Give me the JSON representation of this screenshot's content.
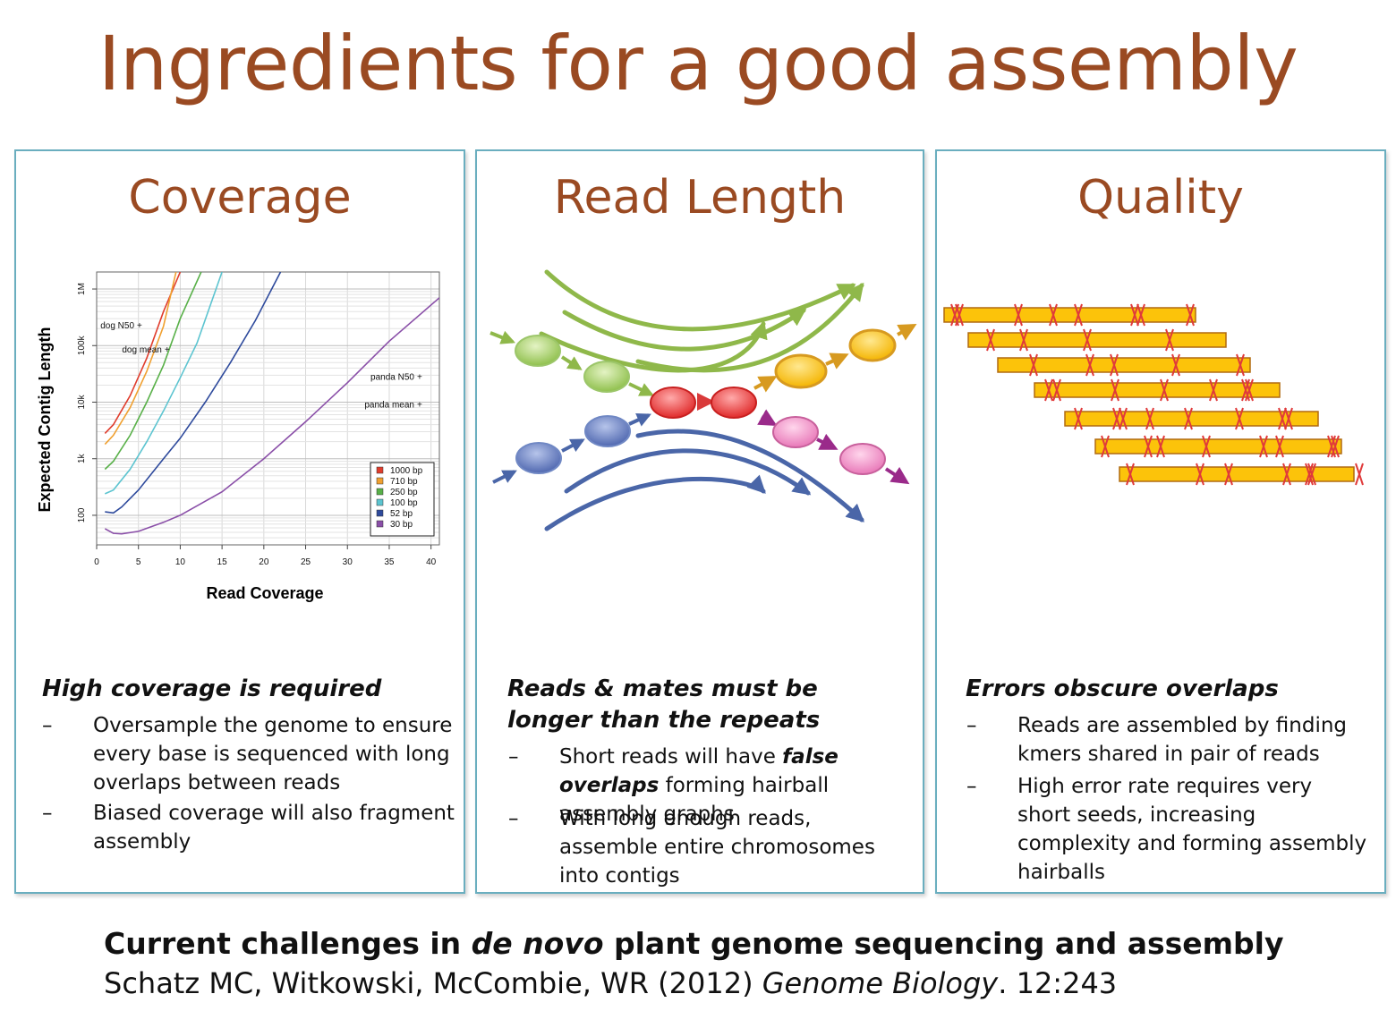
{
  "title": "Ingredients for a good assembly",
  "panels": {
    "coverage": {
      "title": "Coverage",
      "lead": "High coverage is required",
      "bullets": [
        "Oversample the genome to ensure every base is sequenced with long overlaps between reads",
        "Biased coverage will also fragment assembly"
      ]
    },
    "read_length": {
      "title": "Read Length",
      "lead": "Reads & mates must be longer than the repeats",
      "bullet1_pre": "Short reads will have ",
      "bullet1_em": "false overlaps",
      "bullet1_post": " forming hairball assembly graphs",
      "bullet2": "With long enough reads, assemble entire chromosomes into contigs"
    },
    "quality": {
      "title": "Quality",
      "lead": "Errors obscure overlaps",
      "bullets": [
        "Reads are assembled by finding kmers shared in pair of reads",
        "High error rate requires very short seeds, increasing complexity and forming assembly hairballs"
      ]
    }
  },
  "dash_glyph": "–",
  "citation": {
    "line1_pre": "Current challenges in ",
    "line1_em": "de novo",
    "line1_post": " plant genome sequencing and assembly",
    "line2_pre": "Schatz MC, Witkowski, McCombie, WR (2012) ",
    "line2_em": "Genome Biology",
    "line2_post": ". 12:243"
  },
  "chart_data": {
    "type": "line",
    "xlabel": "Read Coverage",
    "ylabel": "Expected Contig Length",
    "x_ticks": [
      0,
      5,
      10,
      15,
      20,
      25,
      30,
      35,
      40
    ],
    "y_ticks": [
      {
        "value": 100,
        "label": "100"
      },
      {
        "value": 1000,
        "label": "1k"
      },
      {
        "value": 10000,
        "label": "10k"
      },
      {
        "value": 100000,
        "label": "100k"
      },
      {
        "value": 1000000,
        "label": "1M"
      }
    ],
    "xlim": [
      0,
      41
    ],
    "ylim": [
      30,
      2000000
    ],
    "y_scale": "log",
    "grid": true,
    "legend_position": "bottom-right",
    "series": [
      {
        "name": "1000 bp",
        "color": "#e03c2c",
        "points": [
          [
            1,
            2800
          ],
          [
            2,
            4000
          ],
          [
            4,
            13000
          ],
          [
            6,
            60000
          ],
          [
            8,
            400000
          ],
          [
            10,
            2000000
          ]
        ]
      },
      {
        "name": "710 bp",
        "color": "#f0a030",
        "points": [
          [
            1,
            1800
          ],
          [
            2,
            2600
          ],
          [
            4,
            8000
          ],
          [
            6,
            35000
          ],
          [
            8,
            220000
          ],
          [
            9.5,
            2000000
          ]
        ]
      },
      {
        "name": "250 bp",
        "color": "#58b048",
        "points": [
          [
            1,
            650
          ],
          [
            2,
            900
          ],
          [
            4,
            2600
          ],
          [
            6,
            10000
          ],
          [
            8,
            45000
          ],
          [
            10,
            300000
          ],
          [
            12.5,
            2000000
          ]
        ]
      },
      {
        "name": "100 bp",
        "color": "#5cc4d0",
        "points": [
          [
            1,
            240
          ],
          [
            2,
            280
          ],
          [
            4,
            650
          ],
          [
            6,
            2000
          ],
          [
            8,
            7000
          ],
          [
            10,
            27000
          ],
          [
            12,
            110000
          ],
          [
            15,
            2000000
          ]
        ]
      },
      {
        "name": "52 bp",
        "color": "#2e4a9c",
        "points": [
          [
            1,
            115
          ],
          [
            2,
            110
          ],
          [
            3,
            140
          ],
          [
            5,
            280
          ],
          [
            8,
            1000
          ],
          [
            10,
            2300
          ],
          [
            13,
            10000
          ],
          [
            16,
            50000
          ],
          [
            19,
            280000
          ],
          [
            22,
            2000000
          ]
        ]
      },
      {
        "name": "30 bp",
        "color": "#8a4fa8",
        "points": [
          [
            1,
            58
          ],
          [
            2,
            48
          ],
          [
            3,
            47
          ],
          [
            5,
            52
          ],
          [
            8,
            75
          ],
          [
            10,
            100
          ],
          [
            15,
            260
          ],
          [
            20,
            1000
          ],
          [
            25,
            4500
          ],
          [
            30,
            22000
          ],
          [
            35,
            120000
          ],
          [
            41,
            700000
          ]
        ]
      }
    ],
    "annotations": [
      {
        "label": "dog N50",
        "x": 4.5,
        "y": 200000
      },
      {
        "label": "dog mean",
        "x": 7.8,
        "y": 75000
      },
      {
        "label": "panda N50",
        "x": 38,
        "y": 25000
      },
      {
        "label": "panda mean",
        "x": 38,
        "y": 8000
      }
    ]
  }
}
